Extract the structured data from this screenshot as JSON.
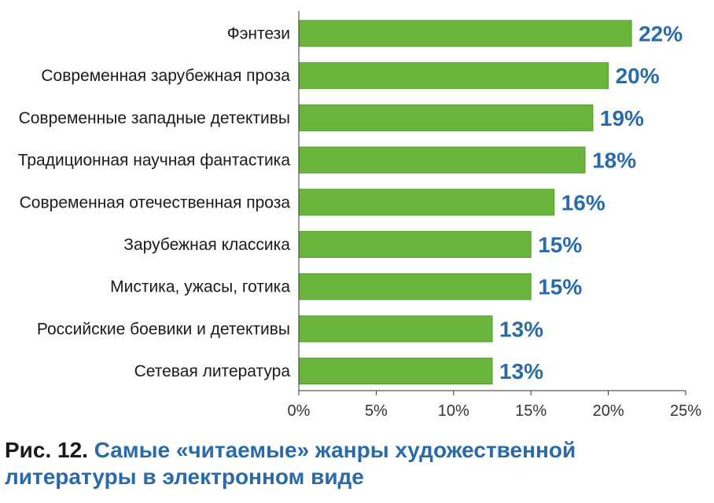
{
  "chart_data": {
    "type": "bar",
    "orientation": "horizontal",
    "categories": [
      "Фэнтези",
      "Современная зарубежная проза",
      "Современные западные детективы",
      "Традиционная научная фантастика",
      "Современная отечественная проза",
      "Зарубежная классика",
      "Мистика, ужасы, готика",
      "Российские боевики и детективы",
      "Сетевая литература"
    ],
    "values": [
      21.5,
      20,
      19,
      18.5,
      16.5,
      15,
      15,
      12.5,
      12.5
    ],
    "data_labels": [
      "22%",
      "20%",
      "19%",
      "18%",
      "16%",
      "15%",
      "15%",
      "13%",
      "13%"
    ],
    "xlim": [
      0,
      25
    ],
    "xticks": [
      0,
      5,
      10,
      15,
      20,
      25
    ],
    "xtick_labels": [
      "0%",
      "5%",
      "10%",
      "15%",
      "20%",
      "25%"
    ],
    "grid": false,
    "bar_color": "#6bb53f",
    "bar_edge_color": "#4e9a2a",
    "label_color": "#2b6aa8",
    "axis_color": "#333333"
  },
  "caption": {
    "prefix": "Рис. 12.",
    "title": "Самые «читаемые» жанры художественной литературы в электронном виде"
  }
}
